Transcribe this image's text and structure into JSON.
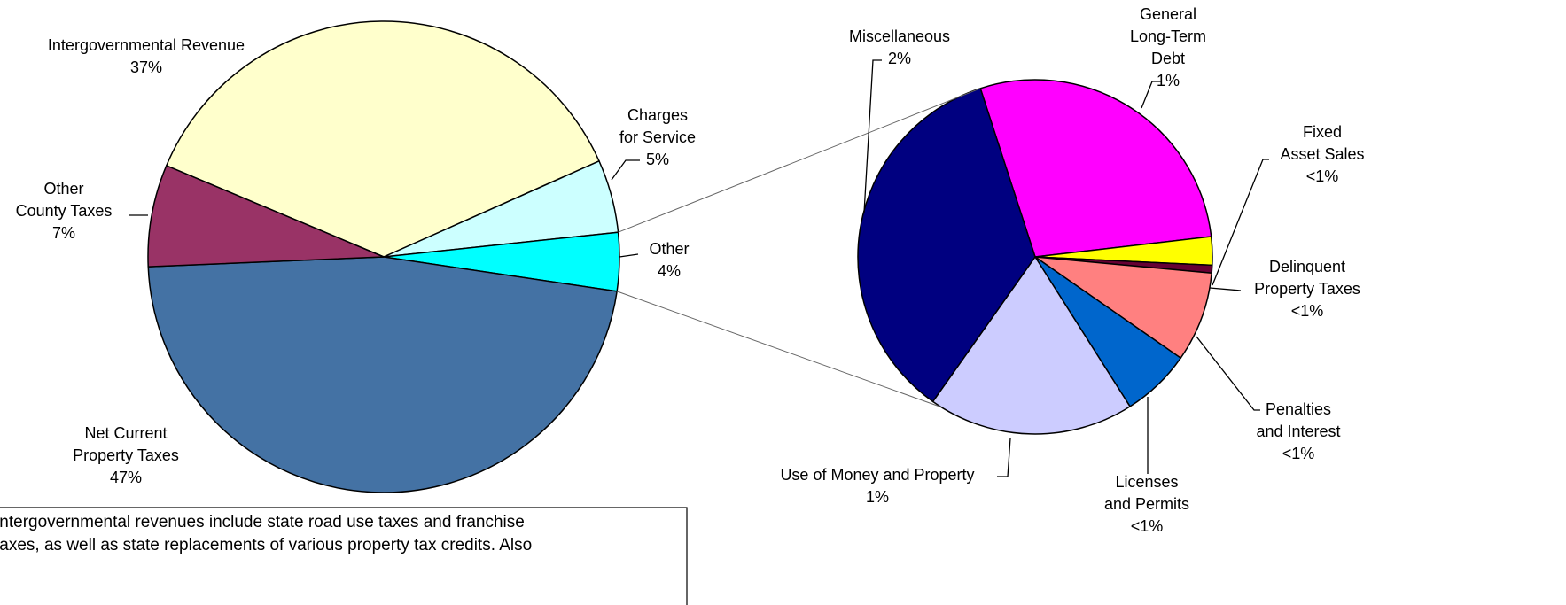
{
  "chart_data": [
    {
      "type": "pie",
      "categories": [
        [
          "Intergovernmental Revenue"
        ],
        [
          "Charges",
          "for Service"
        ],
        [
          "Other"
        ],
        [
          "Net Current",
          "Property Taxes"
        ],
        [
          "Other",
          "County Taxes"
        ]
      ],
      "values": [
        37,
        5,
        4,
        47,
        7
      ],
      "value_labels": [
        "37%",
        "5%",
        "4%",
        "47%",
        "7%"
      ],
      "colors": [
        "#ffffcc",
        "#ccffff",
        "#00ffff",
        "#4472a4",
        "#993366"
      ]
    },
    {
      "type": "pie",
      "categories": [
        [
          "General",
          "Long-Term",
          "Debt"
        ],
        [
          "Fixed",
          "Asset Sales"
        ],
        [
          "Delinquent",
          "Property Taxes"
        ],
        [
          "Penalties",
          "and Interest"
        ],
        [
          "Licenses",
          "and Permits"
        ],
        [
          "Use of Money and Property"
        ],
        [
          "Miscellaneous"
        ]
      ],
      "values": [
        1.2,
        0.11,
        0.03,
        0.35,
        0.27,
        0.8,
        1.5
      ],
      "value_labels": [
        "1%",
        "<1%",
        "<1%",
        "<1%",
        "<1%",
        "1%",
        "2%"
      ],
      "colors": [
        "#ff00ff",
        "#ffff00",
        "#660033",
        "#ff8080",
        "#0066cc",
        "#ccccff",
        "#000080"
      ]
    }
  ],
  "note": [
    "Intergovernmental revenues include state road use taxes and franchise",
    "taxes, as well as state replacements of various property tax credits.  Also"
  ]
}
